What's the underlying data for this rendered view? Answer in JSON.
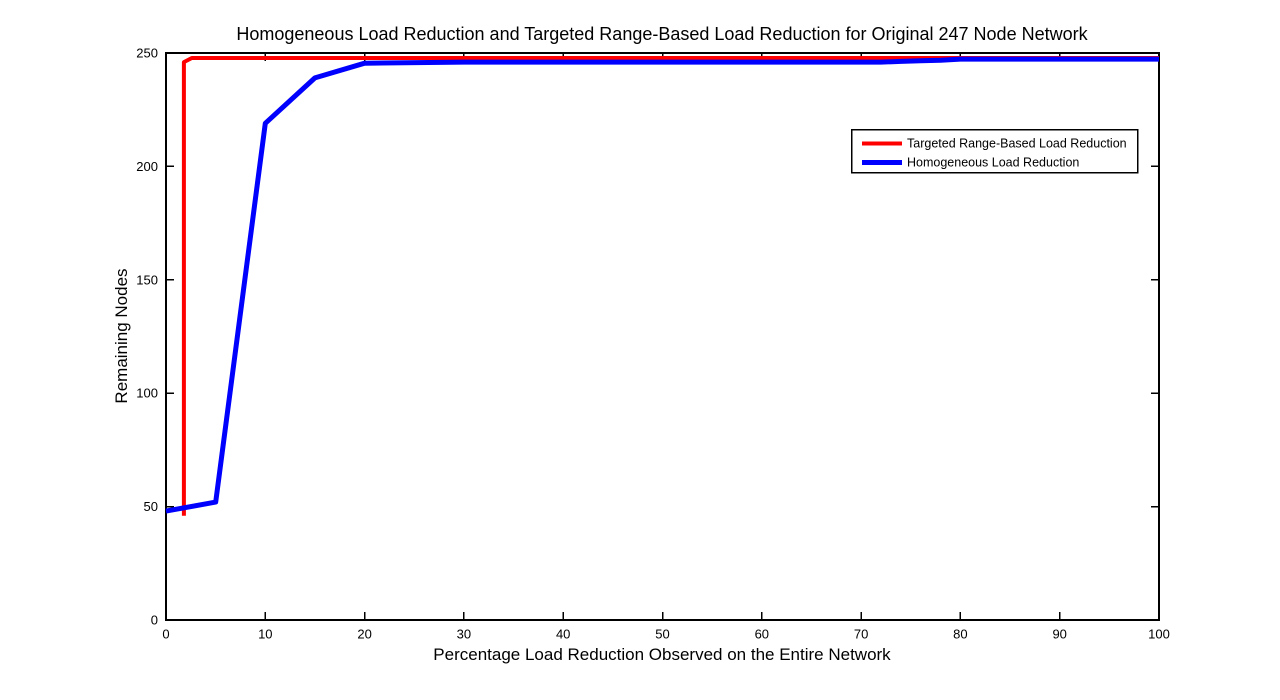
{
  "chart_data": {
    "type": "line",
    "title": "Homogeneous Load Reduction and Targeted Range-Based Load Reduction for Original 247 Node Network",
    "xlabel": "Percentage Load Reduction Observed on the Entire Network",
    "ylabel": "Remaining Nodes",
    "xlim": [
      0,
      100
    ],
    "ylim": [
      0,
      250
    ],
    "xticks": [
      0,
      10,
      20,
      30,
      40,
      50,
      60,
      70,
      80,
      90,
      100
    ],
    "yticks": [
      0,
      50,
      100,
      150,
      200,
      250
    ],
    "grid": false,
    "box": true,
    "background_color": "#FFFFFF",
    "axis_color": "#000000",
    "legend": {
      "position": "upper-right-inside",
      "border_color": "#000000",
      "entries": [
        "Targeted Range-Based Load Reduction",
        "Homogeneous Load Reduction"
      ]
    },
    "series": [
      {
        "name": "Targeted Range-Based Load Reduction",
        "color": "#FF0000",
        "line_width": 4,
        "x": [
          1.8,
          1.8,
          2.6,
          100
        ],
        "y": [
          46,
          246,
          247.8,
          247.8
        ]
      },
      {
        "name": "Homogeneous Load Reduction",
        "color": "#0000FF",
        "line_width": 5,
        "x": [
          0,
          5,
          10,
          15,
          20,
          30,
          40,
          50,
          60,
          70,
          72,
          74,
          76,
          78,
          80,
          90,
          100
        ],
        "y": [
          48,
          52,
          219,
          239,
          245.5,
          246,
          246,
          246,
          246,
          246,
          246,
          246.3,
          246.6,
          246.8,
          247.3,
          247.3,
          247.3
        ]
      }
    ]
  }
}
